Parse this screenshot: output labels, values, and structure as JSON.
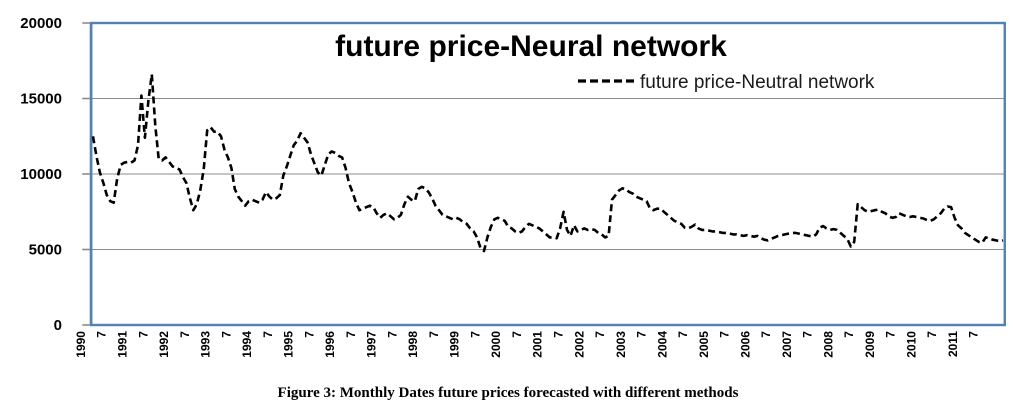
{
  "title": "future price-Neural network",
  "legend": {
    "label": "future price-Neutral network"
  },
  "caption": "Figure 3: Monthly Dates future prices forecasted with different methods",
  "colors": {
    "frame": "#4f81bd",
    "gridline": "#8c8c8c",
    "axis": "#8c8c8c",
    "line": "#000000"
  },
  "chart_data": {
    "type": "line",
    "title": "future price-Neural network",
    "legend_entries": [
      "future price-Neutral network"
    ],
    "legend_position": "top-right-inside",
    "line_style": "dashed",
    "line_color": "#000000",
    "grid": true,
    "ylim": [
      0,
      20000
    ],
    "y_ticks": [
      0,
      5000,
      10000,
      15000,
      20000
    ],
    "y_tick_labels": [
      "0",
      "5000",
      "10000",
      "15000",
      "20000"
    ],
    "x_frequency": "monthly",
    "x_range": [
      "1990",
      "2011"
    ],
    "points_per_tick": 6,
    "x_tick_labels": [
      "1990",
      "7",
      "1991",
      "7",
      "1992",
      "7",
      "1993",
      "7",
      "1994",
      "7",
      "1995",
      "7",
      "1996",
      "7",
      "1997",
      "7",
      "1998",
      "7",
      "1999",
      "7",
      "2000",
      "7",
      "2001",
      "7",
      "2002",
      "7",
      "2003",
      "7",
      "2004",
      "7",
      "2005",
      "7",
      "2006",
      "7",
      "2007",
      "7",
      "2008",
      "7",
      "2009",
      "7",
      "2010",
      "7",
      "2011",
      "7"
    ],
    "series": [
      {
        "name": "future price-Neutral network",
        "values": [
          12500,
          11200,
          10100,
          9400,
          8600,
          8200,
          8100,
          9700,
          10600,
          10750,
          10800,
          10750,
          10900,
          11900,
          15200,
          12400,
          14800,
          16600,
          13200,
          11000,
          10900,
          11100,
          10800,
          10500,
          10400,
          10300,
          9800,
          9400,
          8400,
          7600,
          8000,
          8900,
          10300,
          12900,
          13100,
          12800,
          12800,
          12500,
          11600,
          11100,
          10400,
          9000,
          8500,
          8200,
          7900,
          8200,
          8300,
          8200,
          8100,
          8300,
          8800,
          8500,
          8300,
          8400,
          8600,
          9900,
          10500,
          11200,
          11900,
          12200,
          12700,
          12400,
          12100,
          11300,
          10700,
          10100,
          9900,
          10600,
          11300,
          11500,
          11400,
          11200,
          11100,
          10400,
          9400,
          8800,
          8100,
          7600,
          7700,
          7800,
          7900,
          7800,
          7400,
          7100,
          7300,
          7400,
          7200,
          7000,
          7100,
          7300,
          8000,
          8500,
          8300,
          8200,
          9000,
          9150,
          9050,
          8800,
          8400,
          7900,
          7600,
          7300,
          7200,
          7100,
          7000,
          7100,
          7000,
          6800,
          6700,
          6400,
          6200,
          5800,
          5100,
          4900,
          5800,
          6500,
          7000,
          7100,
          7000,
          6900,
          6500,
          6400,
          6200,
          6100,
          6200,
          6500,
          6700,
          6600,
          6500,
          6400,
          6200,
          6000,
          5800,
          5800,
          5750,
          6400,
          7500,
          6300,
          5900,
          6600,
          6200,
          6300,
          6400,
          6300,
          6350,
          6300,
          6100,
          6000,
          5800,
          5900,
          8300,
          8600,
          8900,
          9050,
          9000,
          8800,
          8700,
          8500,
          8400,
          8300,
          8200,
          7700,
          7600,
          7700,
          7700,
          7500,
          7300,
          7100,
          6900,
          6800,
          6700,
          6450,
          6400,
          6500,
          6650,
          6400,
          6300,
          6300,
          6250,
          6200,
          6200,
          6150,
          6100,
          6100,
          6050,
          6000,
          6000,
          5950,
          5900,
          5950,
          5900,
          5850,
          5900,
          5750,
          5650,
          5600,
          5700,
          5800,
          5900,
          5950,
          6000,
          6050,
          6100,
          6100,
          6050,
          6000,
          5950,
          5900,
          5850,
          6000,
          6450,
          6550,
          6400,
          6300,
          6350,
          6300,
          6100,
          5900,
          5700,
          5200,
          5500,
          8000,
          7800,
          7600,
          7500,
          7550,
          7600,
          7650,
          7500,
          7400,
          7200,
          7100,
          7150,
          7400,
          7300,
          7200,
          7150,
          7200,
          7150,
          7100,
          7050,
          6950,
          6900,
          7000,
          7200,
          7400,
          7700,
          7850,
          7800,
          7100,
          6600,
          6400,
          6100,
          5950,
          5800,
          5650,
          5500,
          5450,
          5800,
          5750,
          5650,
          5600,
          5550,
          5600
        ]
      }
    ]
  }
}
